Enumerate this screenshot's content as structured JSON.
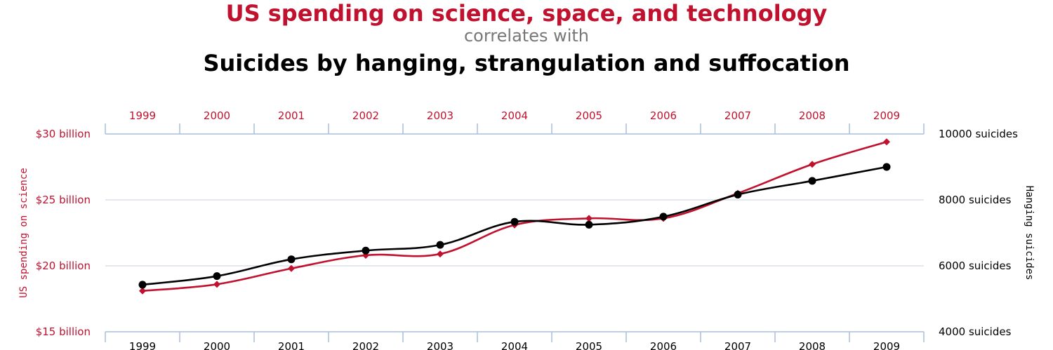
{
  "chart_data": {
    "type": "line",
    "title": "US spending on science, space, and technology",
    "subtitle": "correlates with",
    "title2": "Suicides by hanging, strangulation and suffocation",
    "categories": [
      "1999",
      "2000",
      "2001",
      "2002",
      "2003",
      "2004",
      "2005",
      "2006",
      "2007",
      "2008",
      "2009"
    ],
    "left_axis": {
      "label": "US spending on science",
      "range": [
        15,
        30
      ],
      "ticks": [
        {
          "value": 30,
          "label": "$30 billion"
        },
        {
          "value": 25,
          "label": "$25 billion"
        },
        {
          "value": 20,
          "label": "$20 billion"
        },
        {
          "value": 15,
          "label": "$15 billion"
        }
      ]
    },
    "right_axis": {
      "label": "Hanging suicides",
      "range": [
        4000,
        10000
      ],
      "ticks": [
        {
          "value": 10000,
          "label": "10000 suicides"
        },
        {
          "value": 8000,
          "label": "8000 suicides"
        },
        {
          "value": 6000,
          "label": "6000 suicides"
        },
        {
          "value": 4000,
          "label": "4000 suicides"
        }
      ]
    },
    "series": [
      {
        "name": "US spending on science",
        "axis": "left",
        "color": "#c0112e",
        "marker": "diamond",
        "values": [
          18.1,
          18.6,
          19.8,
          20.8,
          20.9,
          23.1,
          23.6,
          23.6,
          25.5,
          27.7,
          29.4
        ]
      },
      {
        "name": "Hanging suicides",
        "axis": "right",
        "color": "#000000",
        "marker": "circle",
        "values": [
          5427,
          5688,
          6198,
          6462,
          6635,
          7336,
          7248,
          7491,
          8161,
          8578,
          9000
        ]
      }
    ],
    "grid": true
  }
}
